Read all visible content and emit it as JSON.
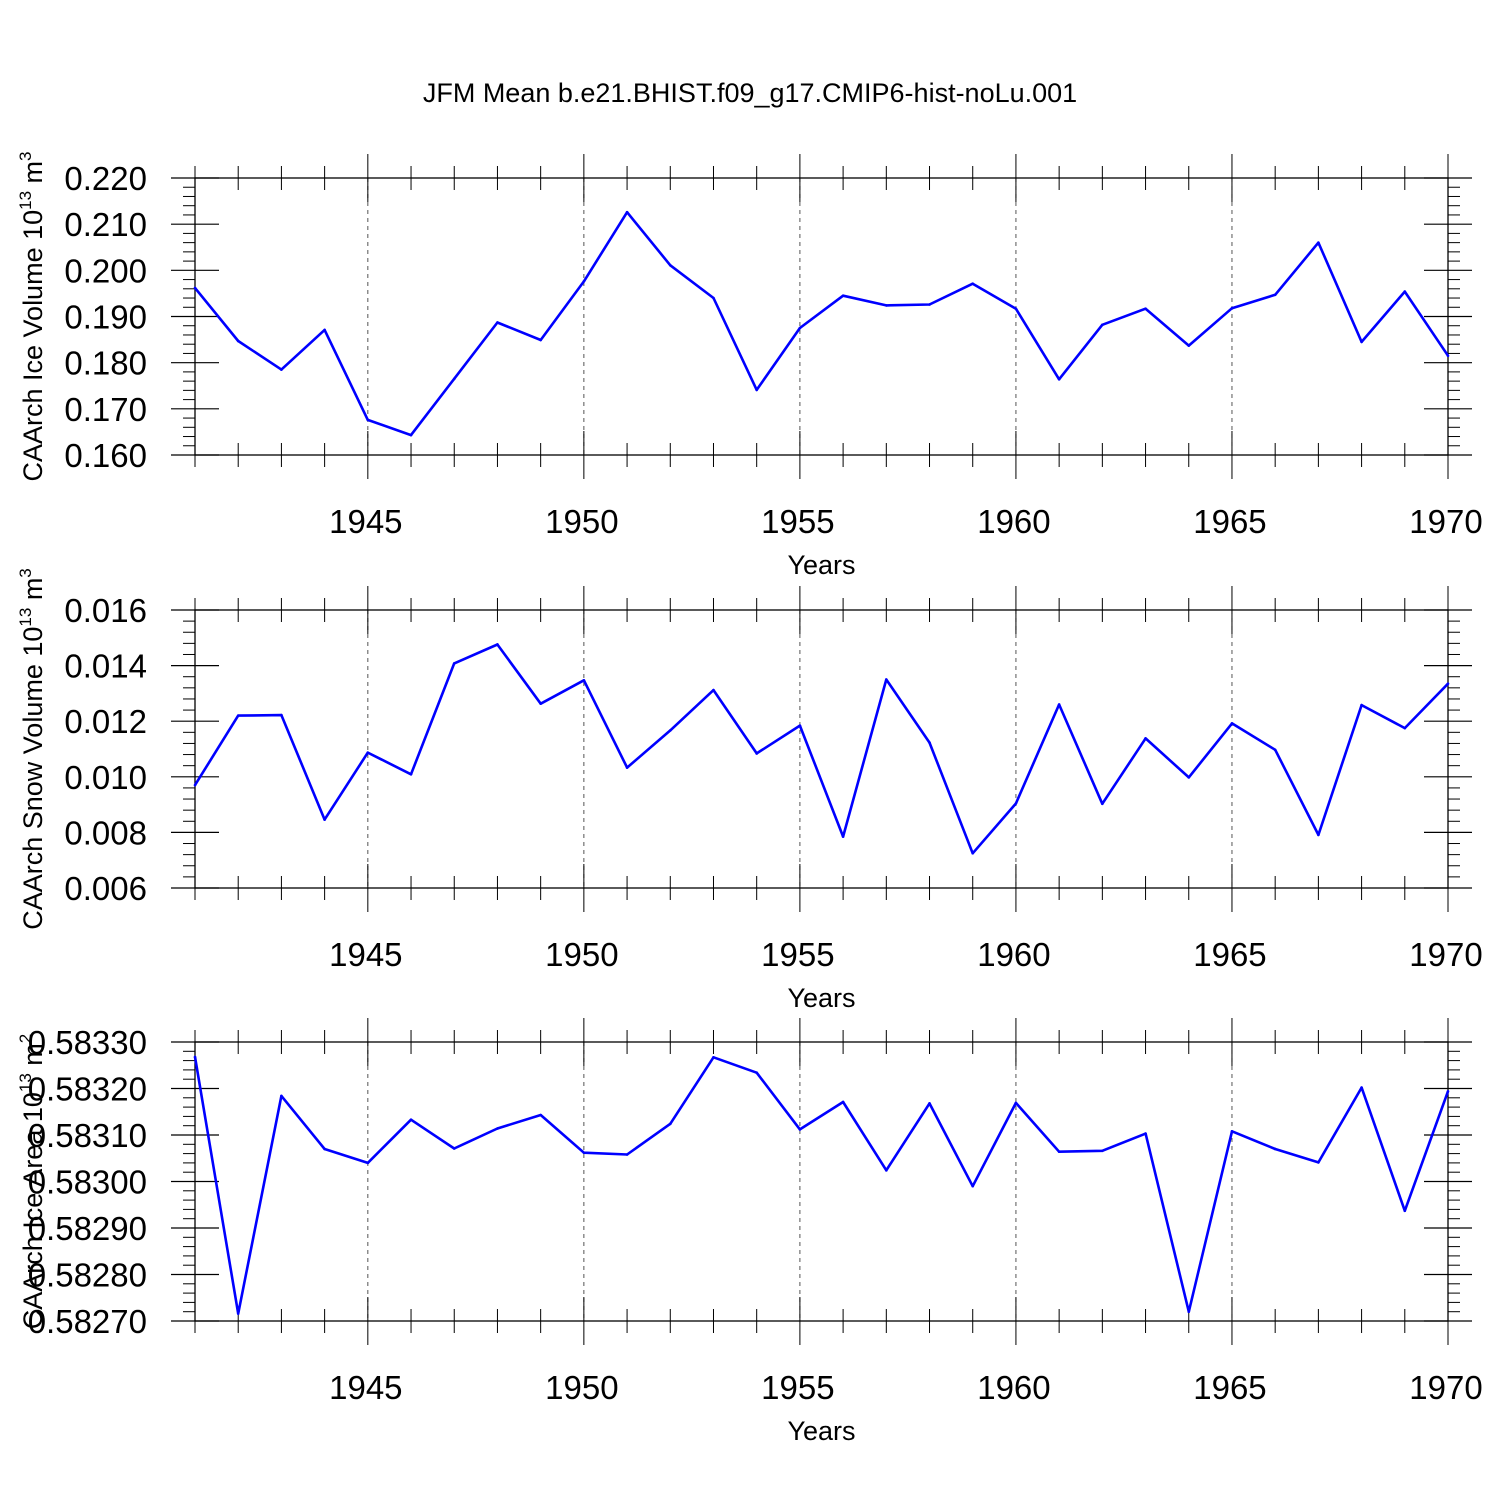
{
  "title": "JFM Mean b.e21.BHIST.f09_g17.CMIP6-hist-noLu.001",
  "colors": {
    "line": "#0000ff",
    "axis": "#000000",
    "grid": "#555555",
    "background": "#ffffff"
  },
  "chart_data": [
    {
      "type": "line",
      "ylabel_main": "CAArch Ice Volume 10",
      "ylabel_sup": "13",
      "ylabel_unit": " m",
      "ylabel_unit_sup": "3",
      "xlabel": "Years",
      "xlim": [
        1941,
        1970
      ],
      "ylim": [
        0.16,
        0.22
      ],
      "yticks": [
        0.16,
        0.17,
        0.18,
        0.19,
        0.2,
        0.21,
        0.22
      ],
      "ytick_labels": [
        "0.160",
        "0.170",
        "0.180",
        "0.190",
        "0.200",
        "0.210",
        "0.220"
      ],
      "xticks": [
        1945,
        1950,
        1955,
        1960,
        1965,
        1970
      ],
      "xtick_labels": [
        "1945",
        "1950",
        "1955",
        "1960",
        "1965",
        "1970"
      ],
      "x": [
        1941,
        1942,
        1943,
        1944,
        1945,
        1946,
        1947,
        1948,
        1949,
        1950,
        1951,
        1952,
        1953,
        1954,
        1955,
        1956,
        1957,
        1958,
        1959,
        1960,
        1961,
        1962,
        1963,
        1964,
        1965,
        1966,
        1967,
        1968,
        1969,
        1970
      ],
      "values": [
        0.1962,
        0.1847,
        0.1785,
        0.1871,
        0.1676,
        0.1643,
        0.1765,
        0.1887,
        0.1849,
        0.1976,
        0.2126,
        0.2011,
        0.194,
        0.1741,
        0.1875,
        0.1945,
        0.1924,
        0.1926,
        0.1971,
        0.1917,
        0.1764,
        0.1882,
        0.1917,
        0.1837,
        0.1918,
        0.1947,
        0.206,
        0.1845,
        0.1954,
        0.1815
      ]
    },
    {
      "type": "line",
      "ylabel_main": "CAArch Snow Volume 10",
      "ylabel_sup": "13",
      "ylabel_unit": " m",
      "ylabel_unit_sup": "3",
      "xlabel": "Years",
      "xlim": [
        1941,
        1970
      ],
      "ylim": [
        0.006,
        0.016
      ],
      "yticks": [
        0.006,
        0.008,
        0.01,
        0.012,
        0.014,
        0.016
      ],
      "ytick_labels": [
        "0.006",
        "0.008",
        "0.010",
        "0.012",
        "0.014",
        "0.016"
      ],
      "xticks": [
        1945,
        1950,
        1955,
        1960,
        1965,
        1970
      ],
      "xtick_labels": [
        "1945",
        "1950",
        "1955",
        "1960",
        "1965",
        "1970"
      ],
      "x": [
        1941,
        1942,
        1943,
        1944,
        1945,
        1946,
        1947,
        1948,
        1949,
        1950,
        1951,
        1952,
        1953,
        1954,
        1955,
        1956,
        1957,
        1958,
        1959,
        1960,
        1961,
        1962,
        1963,
        1964,
        1965,
        1966,
        1967,
        1968,
        1969,
        1970
      ],
      "values": [
        0.0097,
        0.0122,
        0.01222,
        0.00846,
        0.01087,
        0.01009,
        0.01408,
        0.01476,
        0.01263,
        0.01347,
        0.01033,
        0.01167,
        0.01312,
        0.01084,
        0.01184,
        0.00785,
        0.0135,
        0.01123,
        0.00725,
        0.00904,
        0.0126,
        0.00903,
        0.01138,
        0.00998,
        0.01192,
        0.01097,
        0.00791,
        0.01258,
        0.01175,
        0.01335
      ]
    },
    {
      "type": "line",
      "ylabel_main": "CAArch Ice Area 10",
      "ylabel_sup": "13",
      "ylabel_unit": " m",
      "ylabel_unit_sup": "2",
      "xlabel": "Years",
      "xlim": [
        1941,
        1970
      ],
      "ylim": [
        0.5827,
        0.5833
      ],
      "yticks": [
        0.5827,
        0.5828,
        0.5829,
        0.583,
        0.5831,
        0.5832,
        0.5833
      ],
      "ytick_labels": [
        "0.58270",
        "0.58280",
        "0.58290",
        "0.58300",
        "0.58310",
        "0.58320",
        "0.58330"
      ],
      "xticks": [
        1945,
        1950,
        1955,
        1960,
        1965,
        1970
      ],
      "xtick_labels": [
        "1945",
        "1950",
        "1955",
        "1960",
        "1965",
        "1970"
      ],
      "x": [
        1941,
        1942,
        1943,
        1944,
        1945,
        1946,
        1947,
        1948,
        1949,
        1950,
        1951,
        1952,
        1953,
        1954,
        1955,
        1956,
        1957,
        1958,
        1959,
        1960,
        1961,
        1962,
        1963,
        1964,
        1965,
        1966,
        1967,
        1968,
        1969,
        1970
      ],
      "values": [
        0.583268,
        0.582716,
        0.583184,
        0.58307,
        0.58304,
        0.583133,
        0.583071,
        0.583114,
        0.583143,
        0.583062,
        0.583058,
        0.583124,
        0.583267,
        0.583234,
        0.583112,
        0.583171,
        0.583024,
        0.583168,
        0.58299,
        0.583169,
        0.583064,
        0.583066,
        0.583103,
        0.58272,
        0.583108,
        0.58307,
        0.583041,
        0.583202,
        0.582937,
        0.583194
      ]
    }
  ]
}
